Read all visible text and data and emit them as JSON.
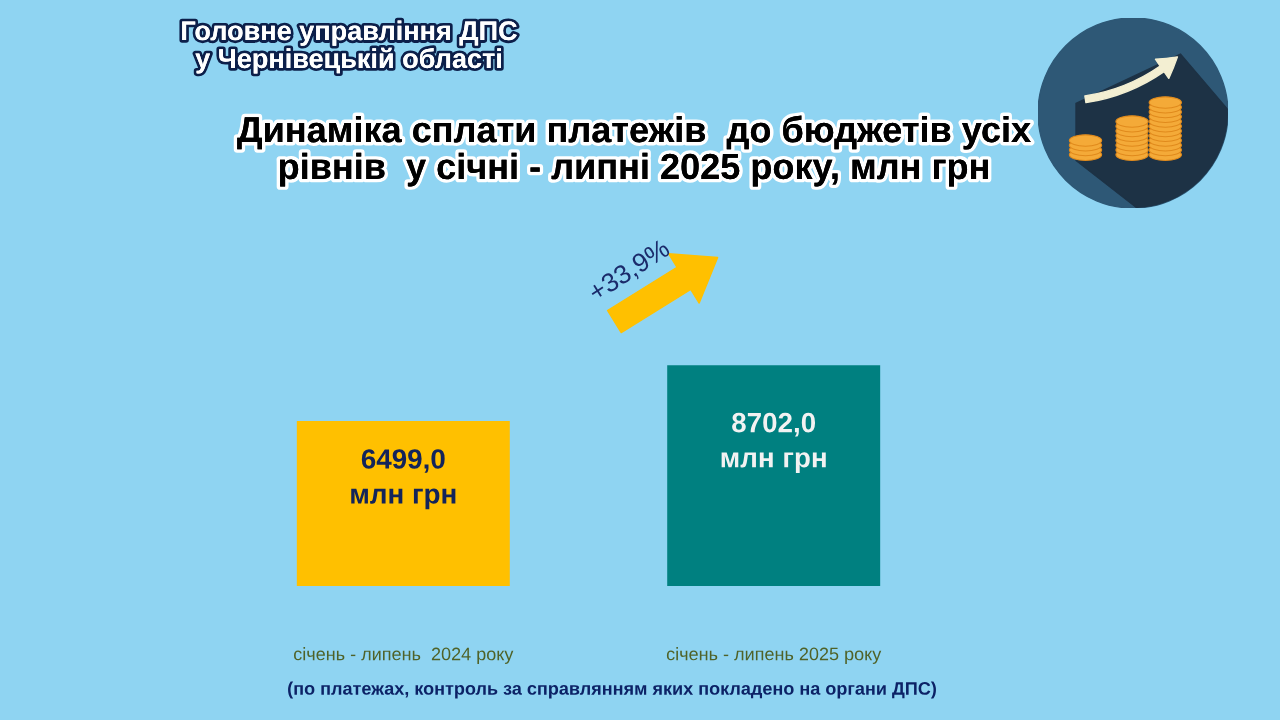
{
  "chart_data": {
    "type": "bar",
    "title": "Динаміка сплати платежів  до бюджетів усіх\nрівнів  у січні - липні 2025 року, млн грн",
    "categories": [
      "січень - липень  2024 року",
      "січень - липень 2025 року"
    ],
    "values": [
      6499.0,
      8702.0
    ],
    "colors": [
      "#ffc000",
      "#008080"
    ],
    "value_labels": [
      "6499,0\nмлн грн",
      "8702,0\nмлн грн"
    ],
    "tick_labels": "x",
    "annotations": [
      "Головне управління ДПС\nу Чернівецькій області",
      "+33,9%",
      "(по платежах, контроль за справлянням яких покладено на органи ДПС)"
    ]
  }
}
